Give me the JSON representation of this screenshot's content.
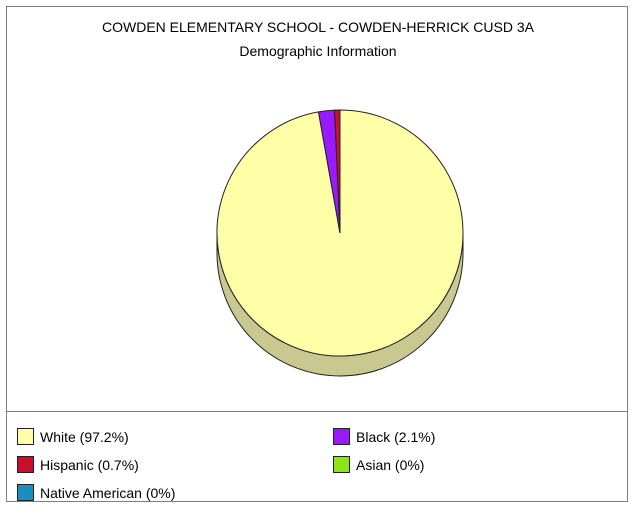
{
  "chart_data": {
    "type": "pie",
    "title": "COWDEN ELEMENTARY SCHOOL - COWDEN-HERRICK CUSD 3A",
    "subtitle": "Demographic Information",
    "legend_position": "bottom",
    "slices": [
      {
        "label": "White",
        "value": 97.2,
        "legend": "White (97.2%)",
        "color": "#ffffa8",
        "side_color": "#c8c890"
      },
      {
        "label": "Black",
        "value": 2.1,
        "legend": "Black (2.1%)",
        "color": "#9a1aff",
        "side_color": "#6a10b0"
      },
      {
        "label": "Hispanic",
        "value": 0.7,
        "legend": "Hispanic (0.7%)",
        "color": "#c8102e",
        "side_color": "#8a0b20"
      },
      {
        "label": "Asian",
        "value": 0,
        "legend": "Asian (0%)",
        "color": "#8fe31a",
        "side_color": "#60a010"
      },
      {
        "label": "Native American",
        "value": 0,
        "legend": "Native American (0%)",
        "color": "#1a8fbf",
        "side_color": "#106080"
      }
    ]
  }
}
